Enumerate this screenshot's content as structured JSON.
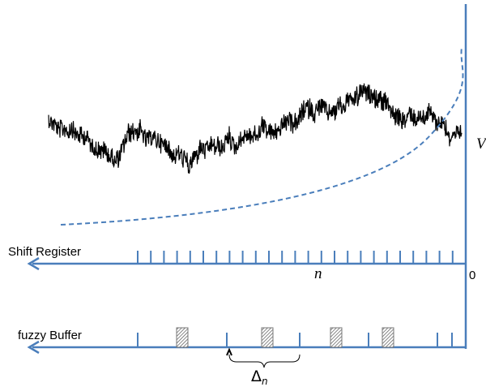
{
  "labels": {
    "signal_axis": "V",
    "shift_register": "Shift Register",
    "buffer": "fuzzy Buffer",
    "index": "n",
    "origin": "0",
    "delta": "Δ",
    "delta_subscript": "n"
  }
}
